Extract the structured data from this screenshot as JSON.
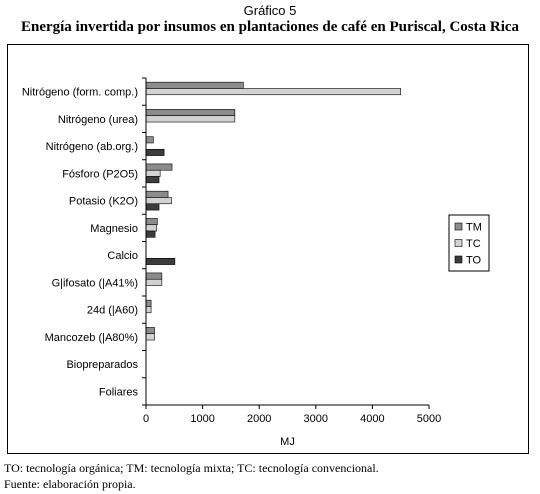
{
  "figure": {
    "label": "Gráfico 5",
    "title": "Energía invertida por insumos en plantaciones de café en Puriscal, Costa Rica"
  },
  "chart_data": {
    "type": "bar",
    "orientation": "horizontal",
    "categories": [
      "Nitrógeno (form. comp.)",
      "Nitrógeno (urea)",
      "Nitrógeno (ab.org.)",
      "Fósforo (P2O5)",
      "Potasio (K2O)",
      "Magnesio",
      "Calcio",
      "G|ifosato (|A41%)",
      "24d (|A60)",
      "Mancozeb (|A80%)",
      "Biopreparados",
      "Foliares"
    ],
    "series": [
      {
        "name": "TM",
        "color": "#8c8c8c",
        "values": [
          1720,
          1570,
          130,
          460,
          390,
          200,
          0,
          280,
          90,
          150,
          0,
          0
        ]
      },
      {
        "name": "TC",
        "color": "#d2d2d2",
        "values": [
          4500,
          1570,
          0,
          250,
          450,
          190,
          0,
          280,
          90,
          150,
          0,
          0
        ]
      },
      {
        "name": "TO",
        "color": "#3c3c3c",
        "values": [
          0,
          0,
          320,
          230,
          230,
          160,
          510,
          0,
          0,
          0,
          0,
          0
        ]
      }
    ],
    "xlim": [
      0,
      5000
    ],
    "xticks": [
      "0",
      "1000",
      "2000",
      "3000",
      "4000",
      "5000"
    ],
    "xlabel": "MJ",
    "ylabel": "",
    "legend_position": "right",
    "grid": false
  },
  "notes": {
    "line1": "TO: tecnología orgánica; TM: tecnología mixta; TC: tecnología convencional.",
    "line2": "Fuente: elaboración propia."
  }
}
